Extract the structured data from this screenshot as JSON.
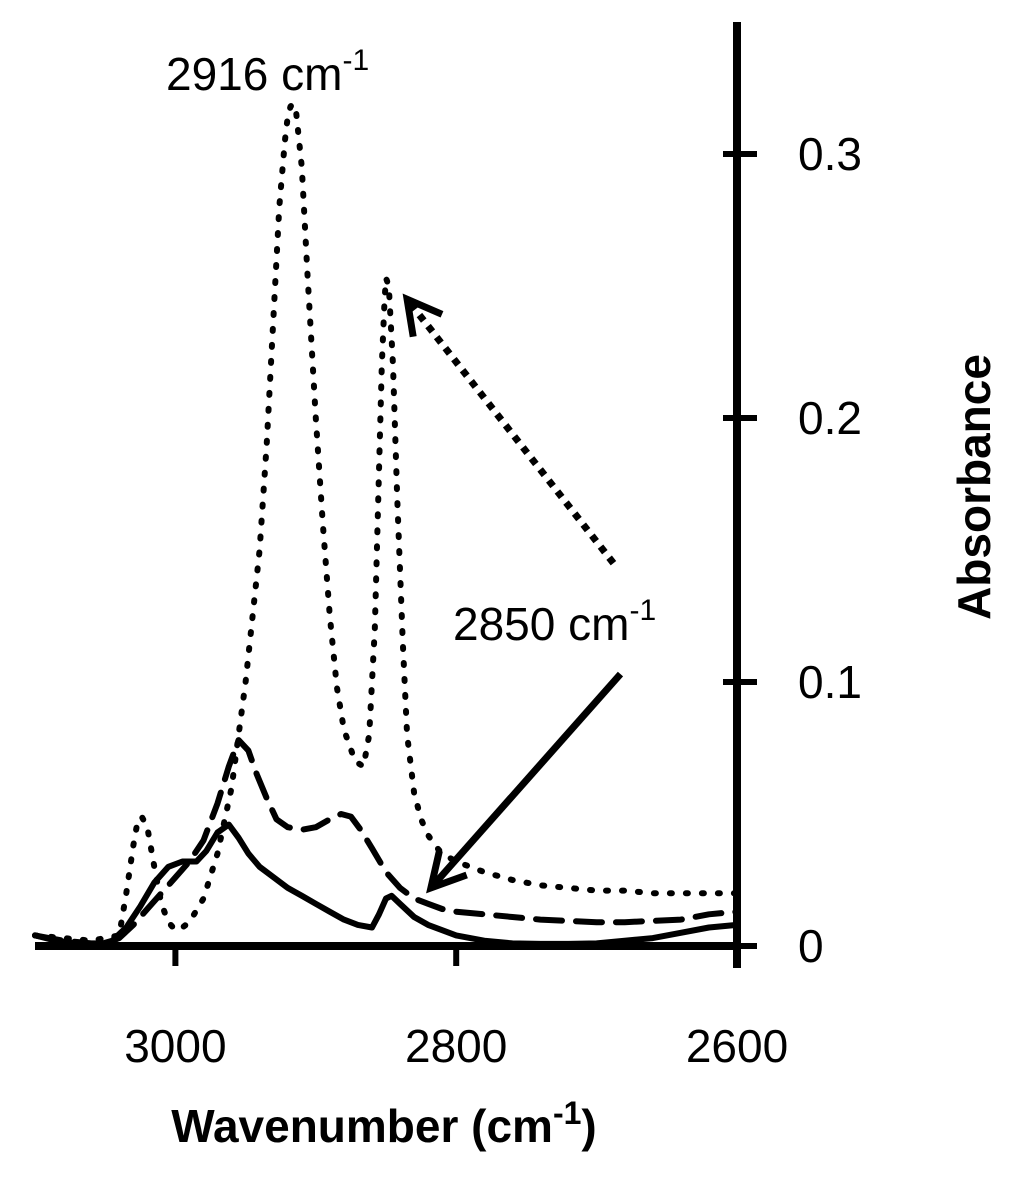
{
  "chart_data": {
    "type": "line",
    "xlabel": "Wavenumber (cm",
    "xlabel_sup": "-1",
    "xlabel_close": ")",
    "ylabel": "Absorbance",
    "x_reversed": true,
    "xlim": [
      3100,
      2600
    ],
    "ylim": [
      0,
      0.35
    ],
    "x_ticks": [
      3000,
      2800,
      2600
    ],
    "x_tick_labels": [
      "3000",
      "2800",
      "2600"
    ],
    "y_ticks": [
      0,
      0.1,
      0.2,
      0.3
    ],
    "y_tick_labels": [
      "0",
      "0.1",
      "0.2",
      "0.3"
    ],
    "y_axis_side": "right",
    "grid": false,
    "colors": {
      "line": "#000000"
    },
    "series": [
      {
        "style": "solid",
        "x": [
          3100,
          3085,
          3070,
          3055,
          3045,
          3035,
          3025,
          3015,
          3005,
          2995,
          2985,
          2978,
          2970,
          2962,
          2955,
          2948,
          2940,
          2930,
          2920,
          2910,
          2900,
          2890,
          2880,
          2870,
          2860,
          2855,
          2850,
          2846,
          2840,
          2830,
          2820,
          2810,
          2800,
          2790,
          2780,
          2760,
          2740,
          2720,
          2700,
          2680,
          2660,
          2640,
          2620,
          2600
        ],
        "y": [
          0.004,
          0.002,
          0.001,
          0.0005,
          0.002,
          0.007,
          0.015,
          0.024,
          0.03,
          0.032,
          0.032,
          0.036,
          0.043,
          0.046,
          0.041,
          0.035,
          0.03,
          0.026,
          0.022,
          0.019,
          0.016,
          0.013,
          0.01,
          0.008,
          0.007,
          0.012,
          0.018,
          0.019,
          0.016,
          0.011,
          0.008,
          0.006,
          0.004,
          0.003,
          0.002,
          0.001,
          0.0008,
          0.0008,
          0.001,
          0.002,
          0.003,
          0.005,
          0.007,
          0.008
        ]
      },
      {
        "style": "dashed",
        "x": [
          3100,
          3080,
          3060,
          3050,
          3040,
          3030,
          3020,
          3010,
          3000,
          2990,
          2980,
          2970,
          2962,
          2955,
          2948,
          2942,
          2935,
          2928,
          2920,
          2910,
          2900,
          2890,
          2882,
          2875,
          2868,
          2860,
          2850,
          2840,
          2830,
          2820,
          2810,
          2800,
          2780,
          2760,
          2740,
          2720,
          2700,
          2680,
          2660,
          2640,
          2620,
          2600
        ],
        "y": [
          0.004,
          0.002,
          0.001,
          0.001,
          0.003,
          0.008,
          0.014,
          0.02,
          0.026,
          0.032,
          0.04,
          0.054,
          0.068,
          0.078,
          0.074,
          0.065,
          0.056,
          0.048,
          0.045,
          0.044,
          0.045,
          0.048,
          0.05,
          0.049,
          0.044,
          0.037,
          0.028,
          0.022,
          0.018,
          0.016,
          0.014,
          0.013,
          0.012,
          0.011,
          0.01,
          0.0095,
          0.009,
          0.009,
          0.0095,
          0.01,
          0.012,
          0.013
        ]
      },
      {
        "style": "dotted",
        "x": [
          3100,
          3060,
          3040,
          3035,
          3030,
          3027,
          3024,
          3020,
          3015,
          3010,
          3005,
          3000,
          2995,
          2990,
          2980,
          2970,
          2960,
          2950,
          2940,
          2935,
          2930,
          2926,
          2922,
          2920,
          2918,
          2916,
          2914,
          2910,
          2906,
          2900,
          2895,
          2890,
          2885,
          2880,
          2872,
          2866,
          2862,
          2858,
          2855,
          2853,
          2851,
          2850,
          2848,
          2845,
          2842,
          2838,
          2835,
          2830,
          2825,
          2820,
          2815,
          2810,
          2800,
          2790,
          2780,
          2760,
          2740,
          2720,
          2700,
          2680,
          2660,
          2640,
          2620,
          2600
        ],
        "y": [
          0.004,
          0.002,
          0.004,
          0.02,
          0.038,
          0.047,
          0.049,
          0.045,
          0.03,
          0.016,
          0.009,
          0.006,
          0.007,
          0.009,
          0.018,
          0.035,
          0.06,
          0.1,
          0.15,
          0.19,
          0.24,
          0.28,
          0.305,
          0.314,
          0.318,
          0.319,
          0.316,
          0.295,
          0.255,
          0.2,
          0.16,
          0.125,
          0.098,
          0.082,
          0.07,
          0.068,
          0.08,
          0.12,
          0.18,
          0.22,
          0.245,
          0.253,
          0.25,
          0.22,
          0.17,
          0.115,
          0.08,
          0.058,
          0.048,
          0.042,
          0.038,
          0.035,
          0.032,
          0.03,
          0.028,
          0.025,
          0.023,
          0.022,
          0.021,
          0.021,
          0.02,
          0.02,
          0.02,
          0.02
        ]
      }
    ],
    "annotations": [
      {
        "id": "peak-2916",
        "number": "2916",
        "unit": " cm",
        "sup": "-1"
      },
      {
        "id": "peak-2850",
        "number": "2850",
        "unit": " cm",
        "sup": "-1"
      }
    ],
    "arrows": [
      {
        "style": "dotted",
        "from": [
          2688,
          0.145
        ],
        "to": [
          2835,
          0.245
        ]
      },
      {
        "style": "solid",
        "from": [
          2683,
          0.103
        ],
        "to": [
          2818,
          0.022
        ]
      }
    ]
  }
}
